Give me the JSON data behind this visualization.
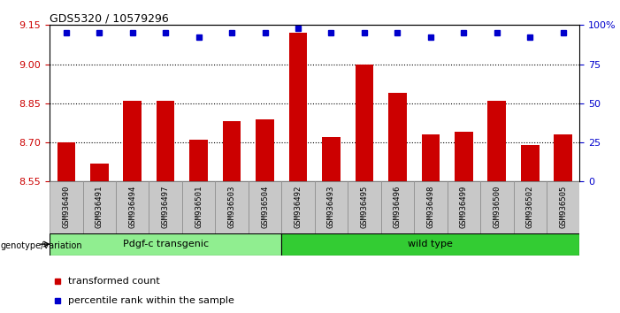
{
  "title": "GDS5320 / 10579296",
  "categories": [
    "GSM936490",
    "GSM936491",
    "GSM936494",
    "GSM936497",
    "GSM936501",
    "GSM936503",
    "GSM936504",
    "GSM936492",
    "GSM936493",
    "GSM936495",
    "GSM936496",
    "GSM936498",
    "GSM936499",
    "GSM936500",
    "GSM936502",
    "GSM936505"
  ],
  "red_values": [
    8.7,
    8.62,
    8.86,
    8.86,
    8.71,
    8.78,
    8.79,
    9.12,
    8.72,
    9.0,
    8.89,
    8.73,
    8.74,
    8.86,
    8.69,
    8.73
  ],
  "blue_values": [
    95,
    95,
    95,
    95,
    92,
    95,
    95,
    98,
    95,
    95,
    95,
    92,
    95,
    95,
    92,
    95
  ],
  "ylim_left": [
    8.55,
    9.15
  ],
  "ylim_right": [
    0,
    100
  ],
  "yticks_left": [
    8.55,
    8.7,
    8.85,
    9.0,
    9.15
  ],
  "yticks_right": [
    0,
    25,
    50,
    75,
    100
  ],
  "ytick_labels_right": [
    "0",
    "25",
    "50",
    "75",
    "100%"
  ],
  "hlines": [
    8.7,
    8.85,
    9.0
  ],
  "group1_label": "Pdgf-c transgenic",
  "group2_label": "wild type",
  "group1_count": 7,
  "group2_count": 9,
  "genotype_label": "genotype/variation",
  "legend_red": "transformed count",
  "legend_blue": "percentile rank within the sample",
  "bar_color": "#cc0000",
  "blue_color": "#0000cc",
  "group1_color": "#90ee90",
  "group2_color": "#33cc33",
  "bg_color": "#c8c8c8",
  "base": 8.55,
  "bar_width": 0.55
}
